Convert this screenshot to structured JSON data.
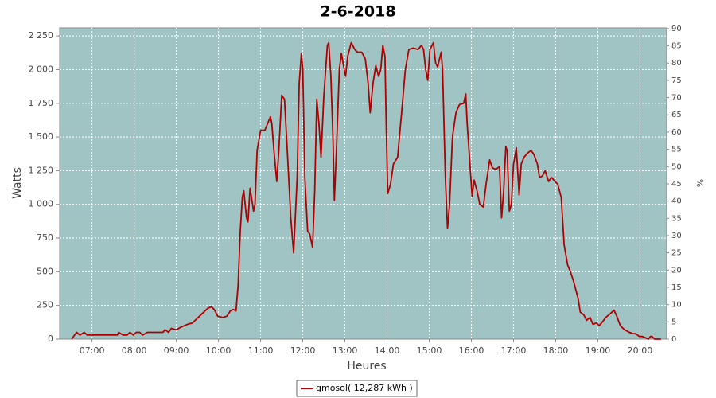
{
  "chart_data": {
    "type": "line",
    "title": "2-6-2018",
    "x_label": "Heures",
    "y_label": "Watts",
    "y2_label": "%",
    "x": [
      "06:31",
      "06:38",
      "06:43",
      "06:49",
      "06:53",
      "06:59",
      "07:36",
      "07:38",
      "07:44",
      "07:50",
      "07:54",
      "07:59",
      "08:03",
      "08:08",
      "08:12",
      "08:19",
      "08:41",
      "08:44",
      "08:49",
      "08:53",
      "09:00",
      "09:07",
      "09:16",
      "09:23",
      "09:29",
      "09:37",
      "09:45",
      "09:50",
      "09:54",
      "09:59",
      "10:06",
      "10:12",
      "10:17",
      "10:21",
      "10:25",
      "10:28",
      "10:31",
      "10:34",
      "10:36",
      "10:40",
      "10:42",
      "10:45",
      "10:50",
      "10:52",
      "10:55",
      "11:00",
      "11:06",
      "11:10",
      "11:14",
      "11:16",
      "11:19",
      "11:23",
      "11:26",
      "11:30",
      "11:34",
      "11:38",
      "11:43",
      "11:47",
      "11:52",
      "11:55",
      "11:58",
      "12:00",
      "12:03",
      "12:07",
      "12:10",
      "12:14",
      "12:17",
      "12:20",
      "12:23",
      "12:26",
      "12:30",
      "12:35",
      "12:37",
      "12:40",
      "12:43",
      "12:45",
      "12:48",
      "12:52",
      "12:55",
      "12:59",
      "13:01",
      "13:04",
      "13:09",
      "13:14",
      "13:18",
      "13:24",
      "13:29",
      "13:33",
      "13:36",
      "13:40",
      "13:44",
      "13:48",
      "13:51",
      "13:54",
      "13:57",
      "13:59",
      "14:01",
      "14:05",
      "14:09",
      "14:15",
      "14:21",
      "14:26",
      "14:31",
      "14:37",
      "14:44",
      "14:49",
      "14:52",
      "14:55",
      "14:58",
      "15:01",
      "15:06",
      "15:09",
      "15:12",
      "15:17",
      "15:19",
      "15:23",
      "15:26",
      "15:29",
      "15:33",
      "15:38",
      "15:43",
      "15:49",
      "15:52",
      "15:54",
      "15:58",
      "16:01",
      "16:04",
      "16:08",
      "16:12",
      "16:17",
      "16:21",
      "16:26",
      "16:30",
      "16:35",
      "16:40",
      "16:43",
      "16:46",
      "16:49",
      "16:51",
      "16:54",
      "16:57",
      "17:00",
      "17:04",
      "17:08",
      "17:11",
      "17:15",
      "17:20",
      "17:25",
      "17:29",
      "17:34",
      "17:37",
      "17:41",
      "17:45",
      "17:50",
      "17:54",
      "17:59",
      "18:03",
      "18:08",
      "18:12",
      "18:17",
      "18:21",
      "18:26",
      "18:32",
      "18:35",
      "18:40",
      "18:44",
      "18:49",
      "18:53",
      "18:58",
      "19:02",
      "19:07",
      "19:11",
      "19:18",
      "19:23",
      "19:27",
      "19:32",
      "19:38",
      "19:45",
      "19:50",
      "19:54",
      "19:59",
      "20:03",
      "20:08",
      "20:12",
      "20:15",
      "20:17",
      "20:21",
      "20:30"
    ],
    "series": [
      {
        "name": "gmosol( 12,287 kWh )",
        "color": "#b00000",
        "values": [
          0,
          50,
          30,
          50,
          30,
          30,
          30,
          50,
          30,
          30,
          50,
          30,
          50,
          50,
          30,
          50,
          50,
          70,
          50,
          80,
          70,
          90,
          110,
          120,
          150,
          190,
          230,
          240,
          220,
          170,
          160,
          170,
          210,
          220,
          210,
          400,
          800,
          1050,
          1100,
          900,
          870,
          1120,
          950,
          1000,
          1400,
          1550,
          1550,
          1600,
          1650,
          1600,
          1400,
          1170,
          1400,
          1810,
          1780,
          1400,
          900,
          640,
          1200,
          1900,
          2120,
          2000,
          1200,
          800,
          780,
          680,
          1100,
          1780,
          1600,
          1350,
          1800,
          2180,
          2200,
          1950,
          1500,
          1030,
          1400,
          2000,
          2120,
          2000,
          1950,
          2100,
          2200,
          2150,
          2130,
          2130,
          2080,
          1900,
          1680,
          1900,
          2030,
          1950,
          2000,
          2180,
          2100,
          1550,
          1080,
          1150,
          1300,
          1350,
          1700,
          2000,
          2150,
          2160,
          2150,
          2180,
          2150,
          2000,
          1920,
          2150,
          2200,
          2050,
          2020,
          2130,
          2000,
          1200,
          820,
          1000,
          1500,
          1680,
          1740,
          1750,
          1820,
          1600,
          1300,
          1060,
          1180,
          1100,
          1000,
          980,
          1150,
          1330,
          1270,
          1260,
          1280,
          900,
          1100,
          1430,
          1400,
          950,
          1000,
          1300,
          1420,
          1070,
          1300,
          1350,
          1380,
          1400,
          1370,
          1300,
          1200,
          1210,
          1250,
          1170,
          1200,
          1170,
          1150,
          1050,
          700,
          550,
          500,
          420,
          300,
          200,
          180,
          140,
          160,
          110,
          120,
          100,
          130,
          160,
          190,
          215,
          170,
          100,
          70,
          50,
          40,
          40,
          20,
          20,
          10,
          0,
          20,
          20,
          0,
          0
        ]
      }
    ],
    "xlim": [
      "06:14",
      "20:38"
    ],
    "xticks": [
      "07:00",
      "08:00",
      "09:00",
      "10:00",
      "11:00",
      "12:00",
      "13:00",
      "14:00",
      "15:00",
      "16:00",
      "17:00",
      "18:00",
      "19:00",
      "20:00"
    ],
    "ylim": [
      0,
      2310
    ],
    "yticks": [
      0,
      250,
      500,
      750,
      {
        "value": 1000,
        "label": "1 000"
      },
      {
        "value": 1250,
        "label": "1 250"
      },
      {
        "value": 1500,
        "label": "1 500"
      },
      {
        "value": 1750,
        "label": "1 750"
      },
      {
        "value": 2000,
        "label": "2 000"
      },
      {
        "value": 2250,
        "label": "2 250"
      }
    ],
    "y2lim": [
      0,
      90.2
    ],
    "y2ticks": [
      0,
      5,
      10,
      15,
      20,
      25,
      30,
      35,
      40,
      45,
      50,
      55,
      60,
      65,
      70,
      75,
      80,
      85,
      90
    ],
    "grid": true,
    "legend": "bottom"
  }
}
